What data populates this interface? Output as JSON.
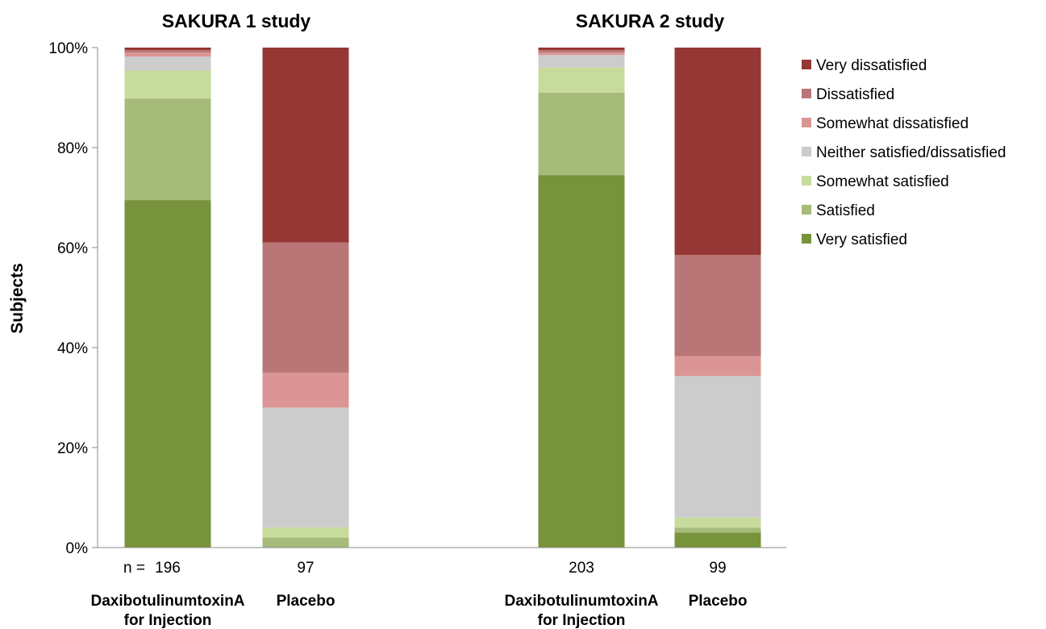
{
  "chart_data": {
    "type": "bar",
    "stacked": true,
    "percent_stacked": true,
    "panels": [
      {
        "title": "SAKURA 1 study"
      },
      {
        "title": "SAKURA 2 study"
      }
    ],
    "categories": [
      {
        "panel": 0,
        "label": [
          "DaxibotulinumtoxinA",
          "for Injection"
        ],
        "n": "196",
        "n_prefix": "n = "
      },
      {
        "panel": 0,
        "label": [
          "Placebo"
        ],
        "n": "97"
      },
      {
        "panel": 1,
        "label": [
          "DaxibotulinumtoxinA",
          "for Injection"
        ],
        "n": "203"
      },
      {
        "panel": 1,
        "label": [
          "Placebo"
        ],
        "n": "99"
      }
    ],
    "series": [
      {
        "name": "Very satisfied",
        "color": "#77933c",
        "values": [
          69.5,
          0,
          74.5,
          3
        ]
      },
      {
        "name": "Satisfied",
        "color": "#a6ba7a",
        "values": [
          20.3,
          2,
          16.5,
          1
        ]
      },
      {
        "name": "Somewhat satisfied",
        "color": "#c7db9c",
        "values": [
          5.6,
          2,
          5,
          2
        ]
      },
      {
        "name": "Neither satisfied/dissatisfied",
        "color": "#cccccc",
        "values": [
          2.8,
          24,
          2.5,
          28.3
        ]
      },
      {
        "name": "Somewhat dissatisfied",
        "color": "#db9594",
        "values": [
          0.8,
          7,
          0.5,
          4
        ]
      },
      {
        "name": "Dissatisfied",
        "color": "#b87776",
        "values": [
          0.5,
          26,
          0.5,
          20.2
        ]
      },
      {
        "name": "Very dissatisfied",
        "color": "#953735",
        "values": [
          0.5,
          39,
          0.5,
          41.5
        ]
      }
    ],
    "legend_order": [
      "Very dissatisfied",
      "Dissatisfied",
      "Somewhat dissatisfied",
      "Neither satisfied/dissatisfied",
      "Somewhat satisfied",
      "Satisfied",
      "Very satisfied"
    ],
    "ylabel": "Subjects",
    "ylim": [
      0,
      100
    ],
    "yticks": [
      "0%",
      "20%",
      "40%",
      "60%",
      "80%",
      "100%"
    ],
    "grid": false,
    "legend_position": "right"
  }
}
